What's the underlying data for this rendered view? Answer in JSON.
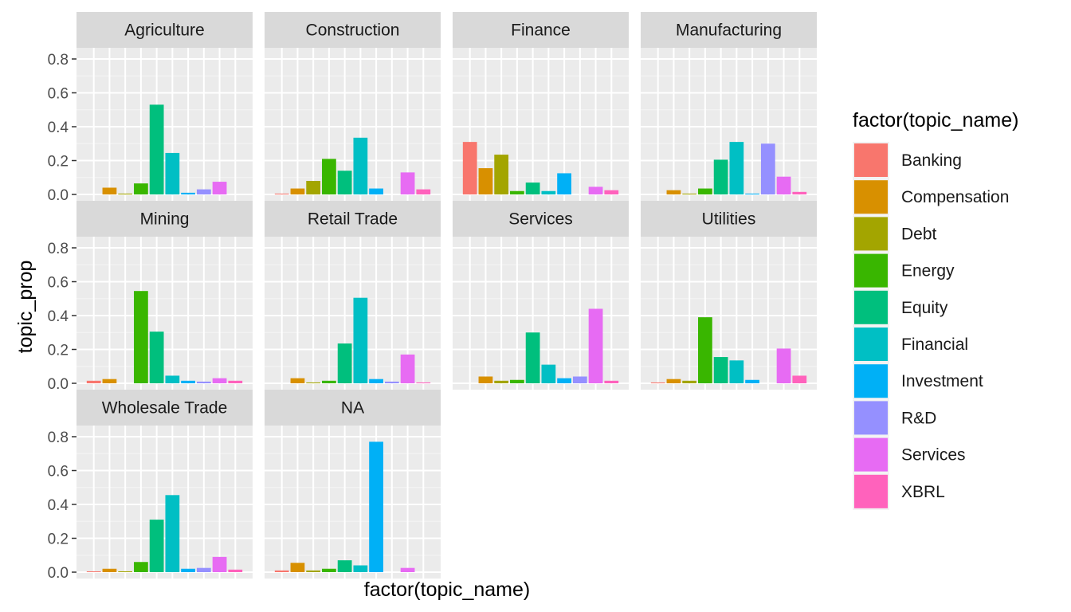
{
  "chart_data": {
    "type": "bar",
    "layout": "faceted",
    "xlabel": "factor(topic_name)",
    "ylabel": "topic_prop",
    "ylim": [
      0,
      0.8
    ],
    "yticks": [
      0.0,
      0.2,
      0.4,
      0.6,
      0.8
    ],
    "ytick_labels": [
      "0.0",
      "0.2",
      "0.4",
      "0.6",
      "0.8"
    ],
    "x_tick_labels_shown": false,
    "grid": true,
    "legend": {
      "title": "factor(topic_name)",
      "position": "right"
    },
    "categories": [
      "Banking",
      "Compensation",
      "Debt",
      "Energy",
      "Equity",
      "Financial",
      "Investment",
      "R&D",
      "Services",
      "XBRL"
    ],
    "colors": [
      "#F8766D",
      "#D89000",
      "#A3A500",
      "#39B600",
      "#00BF7D",
      "#00BFC4",
      "#00B0F6",
      "#9590FF",
      "#E76BF3",
      "#FF62BC"
    ],
    "facets": [
      {
        "name": "Agriculture",
        "values": [
          0.0,
          0.04,
          0.005,
          0.065,
          0.53,
          0.245,
          0.01,
          0.03,
          0.075,
          0.0
        ]
      },
      {
        "name": "Construction",
        "values": [
          0.005,
          0.035,
          0.08,
          0.21,
          0.14,
          0.335,
          0.035,
          0.0,
          0.13,
          0.03
        ]
      },
      {
        "name": "Finance",
        "values": [
          0.31,
          0.155,
          0.235,
          0.02,
          0.07,
          0.02,
          0.125,
          0.0,
          0.045,
          0.025
        ]
      },
      {
        "name": "Manufacturing",
        "values": [
          0.0,
          0.025,
          0.005,
          0.035,
          0.205,
          0.31,
          0.005,
          0.3,
          0.105,
          0.015
        ]
      },
      {
        "name": "Mining",
        "values": [
          0.015,
          0.025,
          0.0,
          0.545,
          0.305,
          0.045,
          0.015,
          0.01,
          0.03,
          0.015
        ]
      },
      {
        "name": "Retail Trade",
        "values": [
          0.0,
          0.03,
          0.005,
          0.015,
          0.235,
          0.505,
          0.025,
          0.01,
          0.17,
          0.005
        ]
      },
      {
        "name": "Services",
        "values": [
          0.0,
          0.04,
          0.015,
          0.02,
          0.3,
          0.11,
          0.03,
          0.04,
          0.44,
          0.015
        ]
      },
      {
        "name": "Utilities",
        "values": [
          0.005,
          0.025,
          0.015,
          0.39,
          0.155,
          0.135,
          0.02,
          0.0,
          0.205,
          0.045
        ]
      },
      {
        "name": "Wholesale Trade",
        "values": [
          0.005,
          0.02,
          0.005,
          0.06,
          0.31,
          0.455,
          0.02,
          0.025,
          0.09,
          0.015
        ]
      },
      {
        "name": "NA",
        "values": [
          0.01,
          0.055,
          0.01,
          0.02,
          0.07,
          0.04,
          0.77,
          0.0,
          0.025,
          0.0
        ]
      }
    ]
  }
}
